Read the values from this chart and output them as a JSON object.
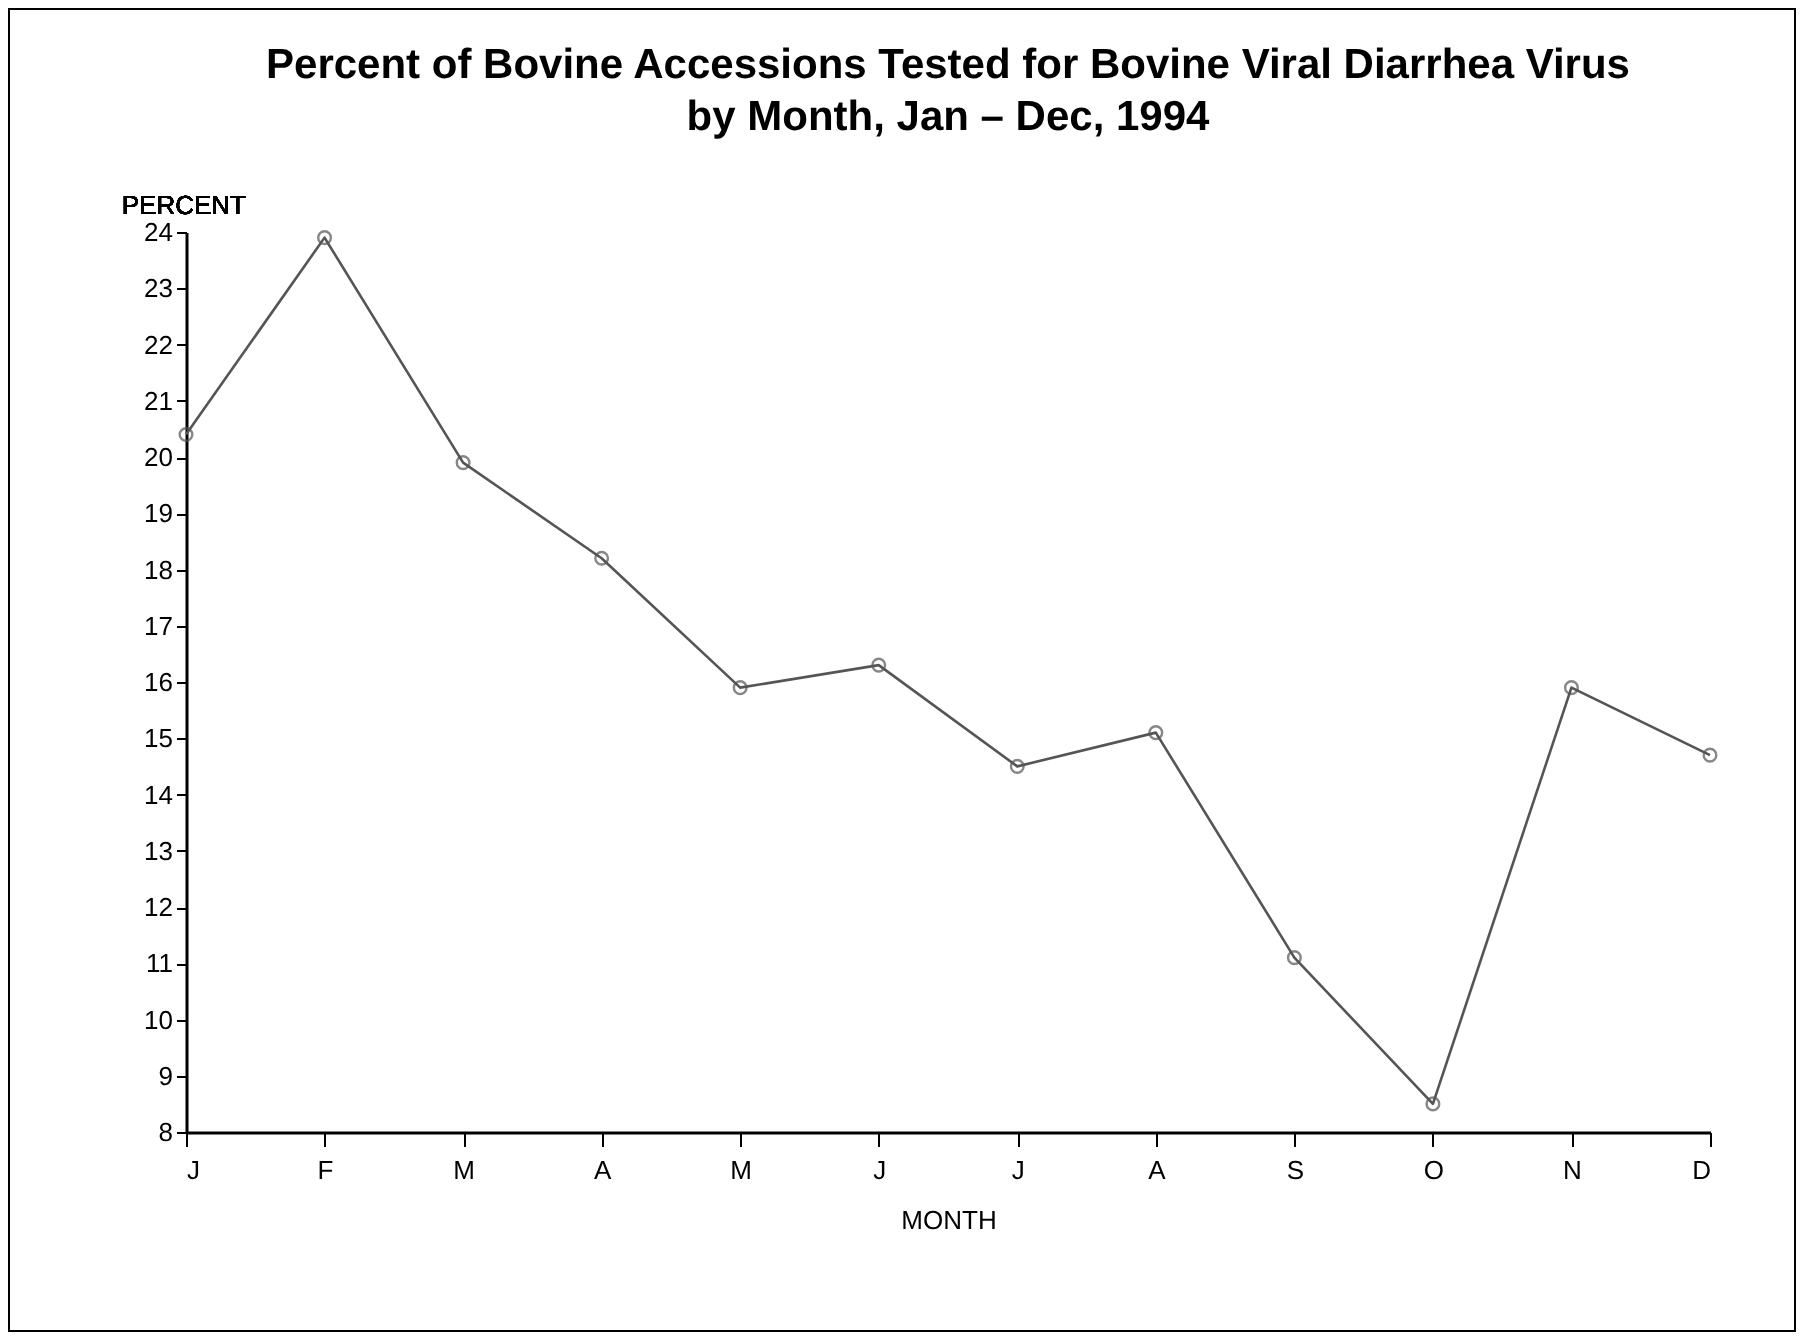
{
  "chart_data": {
    "type": "line",
    "title": [
      "Percent of Bovine Accessions Tested for Bovine Viral Diarrhea Virus",
      "by Month, Jan  –  Dec, 1994"
    ],
    "xlabel": "MONTH",
    "ylabel": "PERCENT",
    "categories": [
      "J",
      "F",
      "M",
      "A",
      "M",
      "J",
      "J",
      "A",
      "S",
      "O",
      "N",
      "D"
    ],
    "series": [
      {
        "color": "#555555",
        "values": [
          20.4,
          23.9,
          19.9,
          18.2,
          15.9,
          16.3,
          14.5,
          15.1,
          11.1,
          8.5,
          15.9,
          14.7
        ]
      }
    ],
    "ylim": [
      8,
      24
    ],
    "yticks": [
      8,
      9,
      10,
      11,
      12,
      13,
      14,
      15,
      16,
      17,
      18,
      19,
      20,
      21,
      22,
      23,
      24
    ],
    "marker": "circle",
    "grid": false,
    "legend": false
  }
}
